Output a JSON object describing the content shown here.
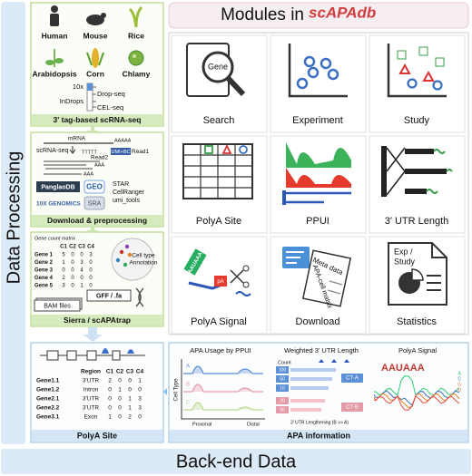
{
  "sidebar": {
    "title": "Data Processing"
  },
  "footer": {
    "title": "Back-end Data"
  },
  "header": {
    "title": "Modules in",
    "logo": "scAPAdb"
  },
  "species": {
    "items": [
      "Human",
      "Mouse",
      "Rice",
      "Arabidopsis",
      "Corn",
      "Chlamy"
    ],
    "protocols": [
      "10x",
      "Drop-seq",
      "InDrops",
      "CEL-seq"
    ],
    "label": "3' tag-based scRNA-seq"
  },
  "preprocessing": {
    "mrna": "mRNA",
    "polya": "AAAAA",
    "scrna": "scRNA-seq",
    "polyt": "TTTTT",
    "umi": "UMI+BC",
    "read1": "Read1",
    "read2": "Read2",
    "aaa": "AAA",
    "sources": [
      "PanglaoDB",
      "GEO",
      "10X GENOMICS",
      "SRA"
    ],
    "tools": [
      "STAR",
      "CellRanger",
      "umi_tools"
    ],
    "label": "Download & preprocessing"
  },
  "matrix": {
    "title": "Gene count matrix",
    "columns": [
      "C1",
      "C2",
      "C3",
      "C4"
    ],
    "rows": [
      [
        "Gene 1",
        5,
        0,
        0,
        3
      ],
      [
        "Gene 2",
        1,
        0,
        3,
        0
      ],
      [
        "Gene 3",
        0,
        0,
        4,
        0
      ],
      [
        "Gene 4",
        2,
        0,
        0,
        0
      ],
      [
        "Gene 5",
        3,
        0,
        1,
        0
      ]
    ],
    "annotation": [
      "Cell type",
      "Annotation"
    ],
    "bam": "BAM files",
    "gff": "GFF / .fa",
    "label": "Sierra / scAPAtrap"
  },
  "polya_site": {
    "columns": [
      "Region",
      "C1",
      "C2",
      "C3",
      "C4"
    ],
    "rows": [
      [
        "Gene1.1",
        "3'UTR",
        2,
        0,
        0,
        1
      ],
      [
        "Gene1.2",
        "Intron",
        0,
        1,
        0,
        0
      ],
      [
        "Gene2.1",
        "3'UTR",
        0,
        0,
        1,
        3
      ],
      [
        "Gene2.2",
        "3'UTR",
        0,
        0,
        1,
        3
      ],
      [
        "Gene3.1",
        "Exon",
        1,
        0,
        2,
        0
      ]
    ],
    "label": "PolyA Site"
  },
  "modules": [
    {
      "label": "Search",
      "texts": [
        "Gene"
      ]
    },
    {
      "label": "Experiment"
    },
    {
      "label": "Study"
    },
    {
      "label": "PolyA Site"
    },
    {
      "label": "PPUI"
    },
    {
      "label": "3' UTR Length"
    },
    {
      "label": "PolyA Signal",
      "texts": [
        "AAUAAA",
        "pA"
      ]
    },
    {
      "label": "Download",
      "texts": [
        "Meta data",
        "APA-cell matrix"
      ]
    },
    {
      "label": "Statistics",
      "texts": [
        "Exp /",
        "Study"
      ]
    }
  ],
  "apa": {
    "ppui": {
      "title": "APA Usage by PPUI",
      "axis": "Cell Type",
      "groups": [
        "A",
        "B",
        "C"
      ],
      "proximal": "Proximal",
      "distal": "Distal"
    },
    "utr": {
      "title": "Weighted 3' UTR Length",
      "axis": "Count",
      "ticks": [
        "100",
        "50",
        "10",
        "20",
        "50"
      ],
      "groups": [
        "CT-A",
        "CT-B"
      ],
      "caption": "3' UTR Lengthening (B >> A)"
    },
    "signal": {
      "title": "PolyA Signal",
      "motif": "AAUAAA",
      "bases": [
        "A",
        "C",
        "G",
        "U"
      ]
    },
    "label": "APA information"
  }
}
